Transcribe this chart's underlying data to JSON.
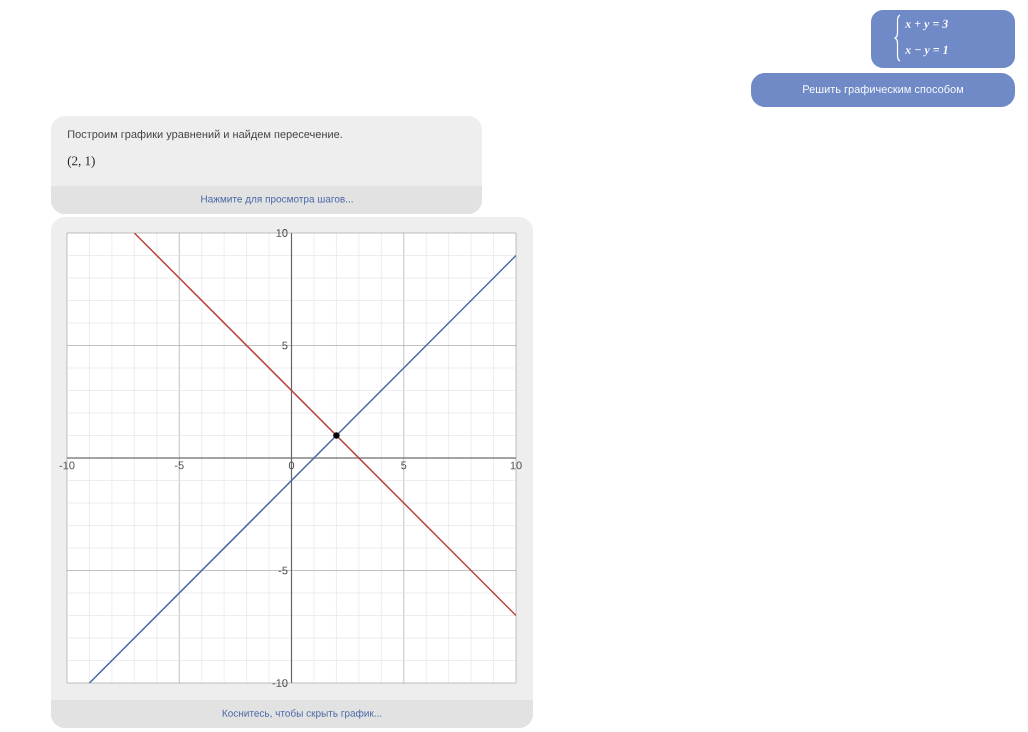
{
  "chart_data": {
    "type": "line",
    "annotations": [
      "x + y = 3",
      "x − y = 1",
      "Решить графическим способом",
      "Построим графики уравнений и найдем пересечение.",
      "(2, 1)",
      "Нажмите для просмотра шагов...",
      "Коснитесь, чтобы скрыть график..."
    ],
    "series": [
      {
        "color": "#b5443d",
        "x": [
          -7,
          10
        ],
        "values": [
          10,
          -7
        ]
      },
      {
        "color": "#4a68a6",
        "x": [
          -9,
          10
        ],
        "values": [
          -10,
          9
        ]
      },
      {
        "type": "scatter",
        "color": "#000000",
        "marker": "circle",
        "x": [
          2
        ],
        "values": [
          1
        ]
      }
    ],
    "xlim": [
      -10,
      10
    ],
    "ylim": [
      -10,
      10
    ],
    "xticks": [
      -10,
      -5,
      0,
      5,
      10
    ],
    "yticks": [
      -10,
      -5,
      {
        "value": 0,
        "label": null
      },
      5,
      10
    ],
    "grid": true
  }
}
